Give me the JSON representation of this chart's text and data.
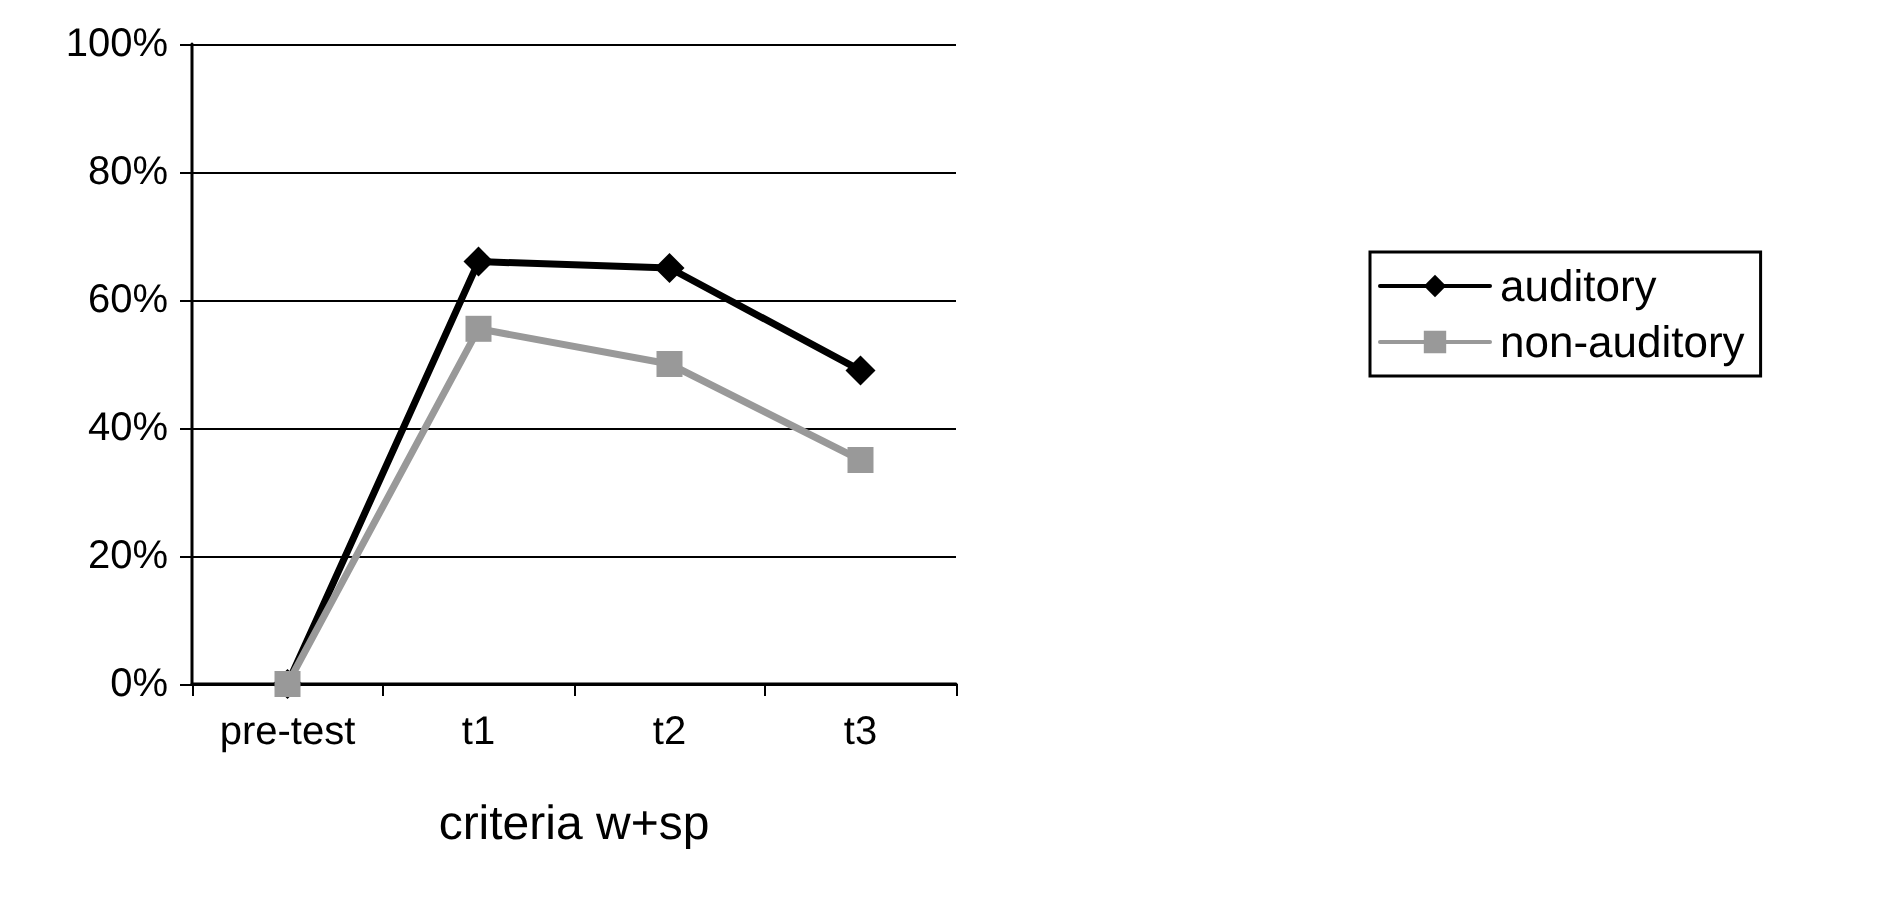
{
  "chart_data": {
    "type": "line",
    "xlabel": "criteria w+sp",
    "categories": [
      "pre-test",
      "t1",
      "t2",
      "t3"
    ],
    "series": [
      {
        "name": "auditory",
        "color": "#000000",
        "marker": "diamond",
        "values": [
          0,
          66,
          65,
          49
        ]
      },
      {
        "name": "non-auditory",
        "color": "#999999",
        "marker": "square",
        "values": [
          0,
          55.5,
          50,
          35
        ]
      }
    ],
    "ylim": [
      0,
      100
    ],
    "yticks": [
      {
        "value": 0,
        "label": "0%"
      },
      {
        "value": 20,
        "label": "20%"
      },
      {
        "value": 40,
        "label": "40%"
      },
      {
        "value": 60,
        "label": "60%"
      },
      {
        "value": 80,
        "label": "80%"
      },
      {
        "value": 100,
        "label": "100%"
      }
    ],
    "grid": "y",
    "legend": "right",
    "line_style": "solid"
  }
}
